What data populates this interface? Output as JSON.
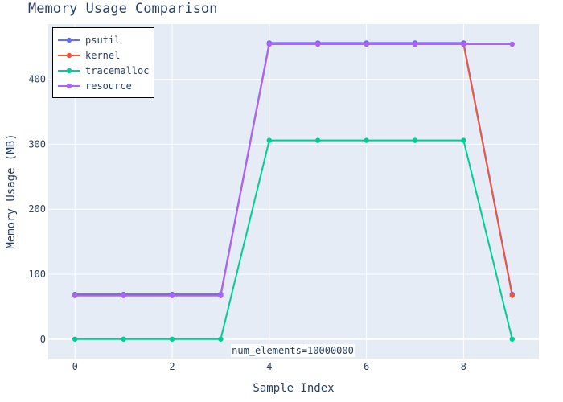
{
  "chart_data": {
    "type": "line",
    "title": "Memory Usage Comparison",
    "xlabel": "Sample Index",
    "ylabel": "Memory Usage (MB)",
    "xlim": [
      -0.55,
      9.55
    ],
    "ylim": [
      -30,
      485
    ],
    "x_ticks": [
      0,
      2,
      4,
      6,
      8
    ],
    "y_ticks": [
      0,
      100,
      200,
      300,
      400
    ],
    "grid": true,
    "legend_position": "top-left",
    "x": [
      0,
      1,
      2,
      3,
      4,
      5,
      6,
      7,
      8,
      9
    ],
    "series": [
      {
        "name": "psutil",
        "color": "#636efa",
        "values": [
          69,
          69,
          69,
          69,
          456,
          456,
          456,
          456,
          456,
          69
        ]
      },
      {
        "name": "kernel",
        "color": "#ef553b",
        "values": [
          67,
          67,
          67,
          67,
          454,
          454,
          454,
          454,
          454,
          67
        ]
      },
      {
        "name": "tracemalloc",
        "color": "#00cc96",
        "values": [
          0,
          0,
          0,
          0,
          306,
          306,
          306,
          306,
          306,
          0
        ]
      },
      {
        "name": "resource",
        "color": "#ab63fa",
        "values": [
          67,
          67,
          67,
          67,
          454,
          454,
          454,
          454,
          454,
          454
        ]
      }
    ],
    "annotation": {
      "text": "num_elements=10000000",
      "x": 4.3,
      "y": -18
    }
  }
}
